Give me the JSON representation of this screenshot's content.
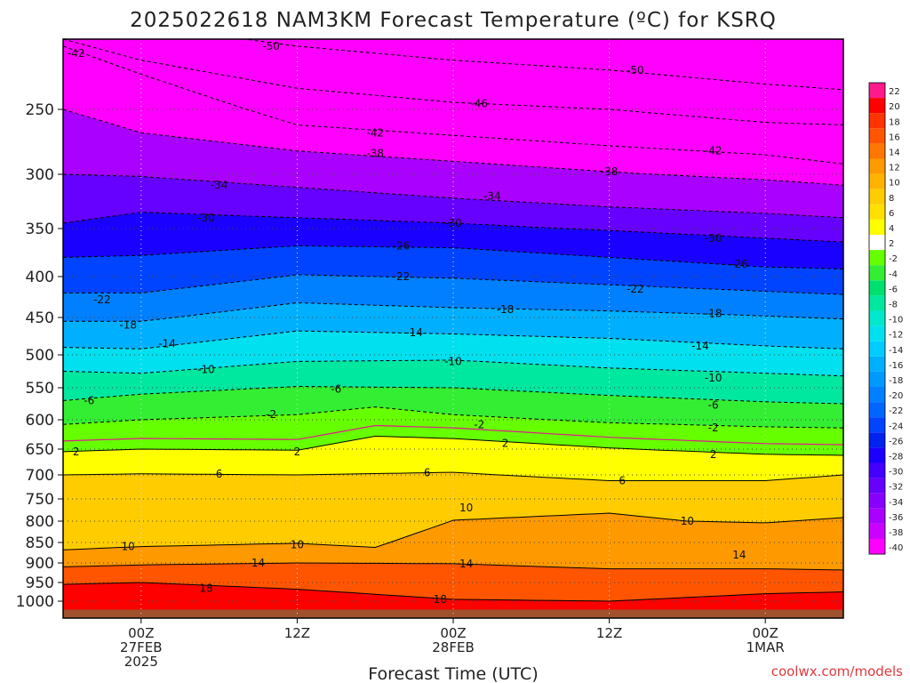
{
  "chart_data": {
    "type": "heatmap",
    "title": "2025022618 NAM3KM Forecast Temperature (ºC) for KSRQ",
    "xlabel": "Forecast Time (UTC)",
    "ylabel": "",
    "credit": "coolwx.com/models",
    "x_ticks": [
      {
        "hour": 0,
        "lines": [
          "00Z",
          "27FEB",
          "2025"
        ]
      },
      {
        "hour": 12,
        "lines": [
          "12Z"
        ]
      },
      {
        "hour": 24,
        "lines": [
          "00Z",
          "28FEB"
        ]
      },
      {
        "hour": 36,
        "lines": [
          "12Z"
        ]
      },
      {
        "hour": 48,
        "lines": [
          "00Z",
          "1MAR"
        ]
      }
    ],
    "xlim": [
      -6,
      54
    ],
    "y_ticks": [
      250,
      300,
      350,
      400,
      450,
      500,
      550,
      600,
      650,
      700,
      750,
      800,
      850,
      900,
      950,
      1000
    ],
    "ylim": [
      1020,
      200
    ],
    "ground_pressure": 1010,
    "colorbar": {
      "levels": [
        22,
        20,
        18,
        16,
        14,
        12,
        10,
        8,
        6,
        4,
        2,
        -2,
        -4,
        -6,
        -8,
        -10,
        -12,
        -14,
        -16,
        -18,
        -20,
        -22,
        -24,
        -26,
        -28,
        -30,
        -32,
        -34,
        -36,
        -38,
        -40
      ],
      "colors": [
        "#ff1a8c",
        "#ff0000",
        "#ff3300",
        "#ff5500",
        "#ff7700",
        "#ff9900",
        "#ffb300",
        "#ffcc00",
        "#ffe000",
        "#ffff00",
        "#ffffff",
        "#66ff00",
        "#33ee33",
        "#00e070",
        "#00e8a0",
        "#00e8cc",
        "#00e0ee",
        "#00ccff",
        "#00b0ff",
        "#0099ff",
        "#0080ff",
        "#0066ff",
        "#0044ff",
        "#0022ee",
        "#1a00ff",
        "#4400ff",
        "#6600ff",
        "#8800ff",
        "#aa00ff",
        "#cc00ff",
        "#ff00ff"
      ]
    },
    "contours": [
      {
        "temp": -50,
        "pressure_at_hours": [
          [
            -6,
            185
          ],
          [
            0,
            190
          ],
          [
            12,
            205
          ],
          [
            24,
            215
          ],
          [
            36,
            222
          ],
          [
            48,
            232
          ],
          [
            54,
            236
          ]
        ],
        "labels": [
          [
            10,
            205
          ],
          [
            38,
            222
          ]
        ]
      },
      {
        "temp": -46,
        "pressure_at_hours": [
          [
            -6,
            200
          ],
          [
            0,
            215
          ],
          [
            12,
            235
          ],
          [
            24,
            245
          ],
          [
            36,
            250
          ],
          [
            48,
            260
          ],
          [
            54,
            262
          ]
        ],
        "labels": [
          [
            26,
            246
          ]
        ]
      },
      {
        "temp": -42,
        "pressure_at_hours": [
          [
            -6,
            205
          ],
          [
            0,
            225
          ],
          [
            12,
            262
          ],
          [
            24,
            270
          ],
          [
            36,
            278
          ],
          [
            48,
            285
          ],
          [
            54,
            292
          ]
        ],
        "labels": [
          [
            -5,
            210
          ],
          [
            18,
            268
          ],
          [
            44,
            282
          ]
        ]
      },
      {
        "temp": -38,
        "pressure_at_hours": [
          [
            -6,
            250
          ],
          [
            0,
            268
          ],
          [
            12,
            282
          ],
          [
            24,
            290
          ],
          [
            36,
            298
          ],
          [
            48,
            305
          ],
          [
            54,
            310
          ]
        ],
        "labels": [
          [
            18,
            284
          ],
          [
            36,
            298
          ]
        ]
      },
      {
        "temp": -34,
        "pressure_at_hours": [
          [
            -6,
            300
          ],
          [
            0,
            302
          ],
          [
            12,
            312
          ],
          [
            24,
            322
          ],
          [
            36,
            330
          ],
          [
            48,
            336
          ],
          [
            54,
            340
          ]
        ],
        "labels": [
          [
            6,
            310
          ],
          [
            27,
            320
          ]
        ]
      },
      {
        "temp": -30,
        "pressure_at_hours": [
          [
            -6,
            345
          ],
          [
            0,
            335
          ],
          [
            12,
            340
          ],
          [
            24,
            345
          ],
          [
            36,
            352
          ],
          [
            48,
            360
          ],
          [
            54,
            364
          ]
        ],
        "labels": [
          [
            5,
            340
          ],
          [
            24,
            345
          ],
          [
            44,
            360
          ]
        ]
      },
      {
        "temp": -26,
        "pressure_at_hours": [
          [
            -6,
            380
          ],
          [
            0,
            378
          ],
          [
            12,
            368
          ],
          [
            24,
            370
          ],
          [
            36,
            380
          ],
          [
            48,
            390
          ],
          [
            54,
            392
          ]
        ],
        "labels": [
          [
            20,
            368
          ],
          [
            46,
            387
          ]
        ]
      },
      {
        "temp": -22,
        "pressure_at_hours": [
          [
            -6,
            420
          ],
          [
            0,
            420
          ],
          [
            12,
            398
          ],
          [
            24,
            402
          ],
          [
            36,
            410
          ],
          [
            48,
            418
          ],
          [
            54,
            422
          ]
        ],
        "labels": [
          [
            -3,
            428
          ],
          [
            20,
            400
          ],
          [
            38,
            415
          ]
        ]
      },
      {
        "temp": -18,
        "pressure_at_hours": [
          [
            -6,
            455
          ],
          [
            0,
            455
          ],
          [
            12,
            432
          ],
          [
            24,
            438
          ],
          [
            36,
            442
          ],
          [
            48,
            448
          ],
          [
            54,
            452
          ]
        ],
        "labels": [
          [
            -1,
            460
          ],
          [
            28,
            440
          ],
          [
            44,
            445
          ]
        ]
      },
      {
        "temp": -14,
        "pressure_at_hours": [
          [
            -6,
            490
          ],
          [
            0,
            492
          ],
          [
            12,
            468
          ],
          [
            24,
            472
          ],
          [
            36,
            478
          ],
          [
            48,
            488
          ],
          [
            54,
            492
          ]
        ],
        "labels": [
          [
            2,
            485
          ],
          [
            21,
            470
          ],
          [
            43,
            488
          ]
        ]
      },
      {
        "temp": -10,
        "pressure_at_hours": [
          [
            -6,
            525
          ],
          [
            0,
            528
          ],
          [
            12,
            510
          ],
          [
            24,
            508
          ],
          [
            36,
            520
          ],
          [
            48,
            528
          ],
          [
            54,
            532
          ]
        ],
        "labels": [
          [
            5,
            522
          ],
          [
            24,
            510
          ],
          [
            44,
            535
          ]
        ]
      },
      {
        "temp": -6,
        "pressure_at_hours": [
          [
            -6,
            570
          ],
          [
            0,
            560
          ],
          [
            12,
            548
          ],
          [
            24,
            550
          ],
          [
            36,
            562
          ],
          [
            48,
            572
          ],
          [
            54,
            575
          ]
        ],
        "labels": [
          [
            -4,
            570
          ],
          [
            15,
            552
          ],
          [
            44,
            577
          ]
        ]
      },
      {
        "temp": -2,
        "pressure_at_hours": [
          [
            -6,
            608
          ],
          [
            0,
            600
          ],
          [
            12,
            592
          ],
          [
            18,
            580
          ],
          [
            24,
            592
          ],
          [
            36,
            605
          ],
          [
            48,
            612
          ],
          [
            54,
            614
          ]
        ],
        "labels": [
          [
            10,
            592
          ],
          [
            26,
            608
          ],
          [
            44,
            614
          ]
        ]
      },
      {
        "temp": 2,
        "pressure_at_hours": [
          [
            -6,
            655
          ],
          [
            0,
            650
          ],
          [
            12,
            652
          ],
          [
            18,
            628
          ],
          [
            24,
            632
          ],
          [
            36,
            648
          ],
          [
            48,
            660
          ],
          [
            54,
            662
          ]
        ],
        "labels": [
          [
            -5,
            655
          ],
          [
            12,
            655
          ],
          [
            28,
            640
          ],
          [
            44,
            660
          ]
        ]
      },
      {
        "temp": 6,
        "pressure_at_hours": [
          [
            -6,
            700
          ],
          [
            0,
            698
          ],
          [
            12,
            700
          ],
          [
            24,
            695
          ],
          [
            36,
            712
          ],
          [
            48,
            712
          ],
          [
            54,
            700
          ]
        ],
        "labels": [
          [
            6,
            698
          ],
          [
            22,
            696
          ],
          [
            37,
            712
          ]
        ]
      },
      {
        "temp": 10,
        "pressure_at_hours": [
          [
            -6,
            868
          ],
          [
            0,
            860
          ],
          [
            12,
            852
          ],
          [
            18,
            862
          ],
          [
            24,
            798
          ],
          [
            36,
            782
          ],
          [
            42,
            800
          ],
          [
            48,
            804
          ],
          [
            54,
            792
          ]
        ],
        "labels": [
          [
            -1,
            860
          ],
          [
            12,
            855
          ],
          [
            25,
            770
          ],
          [
            42,
            800
          ]
        ]
      },
      {
        "temp": 14,
        "pressure_at_hours": [
          [
            -6,
            910
          ],
          [
            0,
            905
          ],
          [
            12,
            900
          ],
          [
            24,
            902
          ],
          [
            36,
            915
          ],
          [
            48,
            915
          ],
          [
            54,
            918
          ]
        ],
        "labels": [
          [
            9,
            900
          ],
          [
            25,
            902
          ],
          [
            46,
            880
          ]
        ]
      },
      {
        "temp": 18,
        "pressure_at_hours": [
          [
            -6,
            955
          ],
          [
            0,
            950
          ],
          [
            12,
            968
          ],
          [
            24,
            995
          ],
          [
            36,
            1000
          ],
          [
            48,
            980
          ],
          [
            54,
            975
          ]
        ],
        "labels": [
          [
            5,
            965
          ],
          [
            23,
            995
          ]
        ]
      }
    ]
  }
}
